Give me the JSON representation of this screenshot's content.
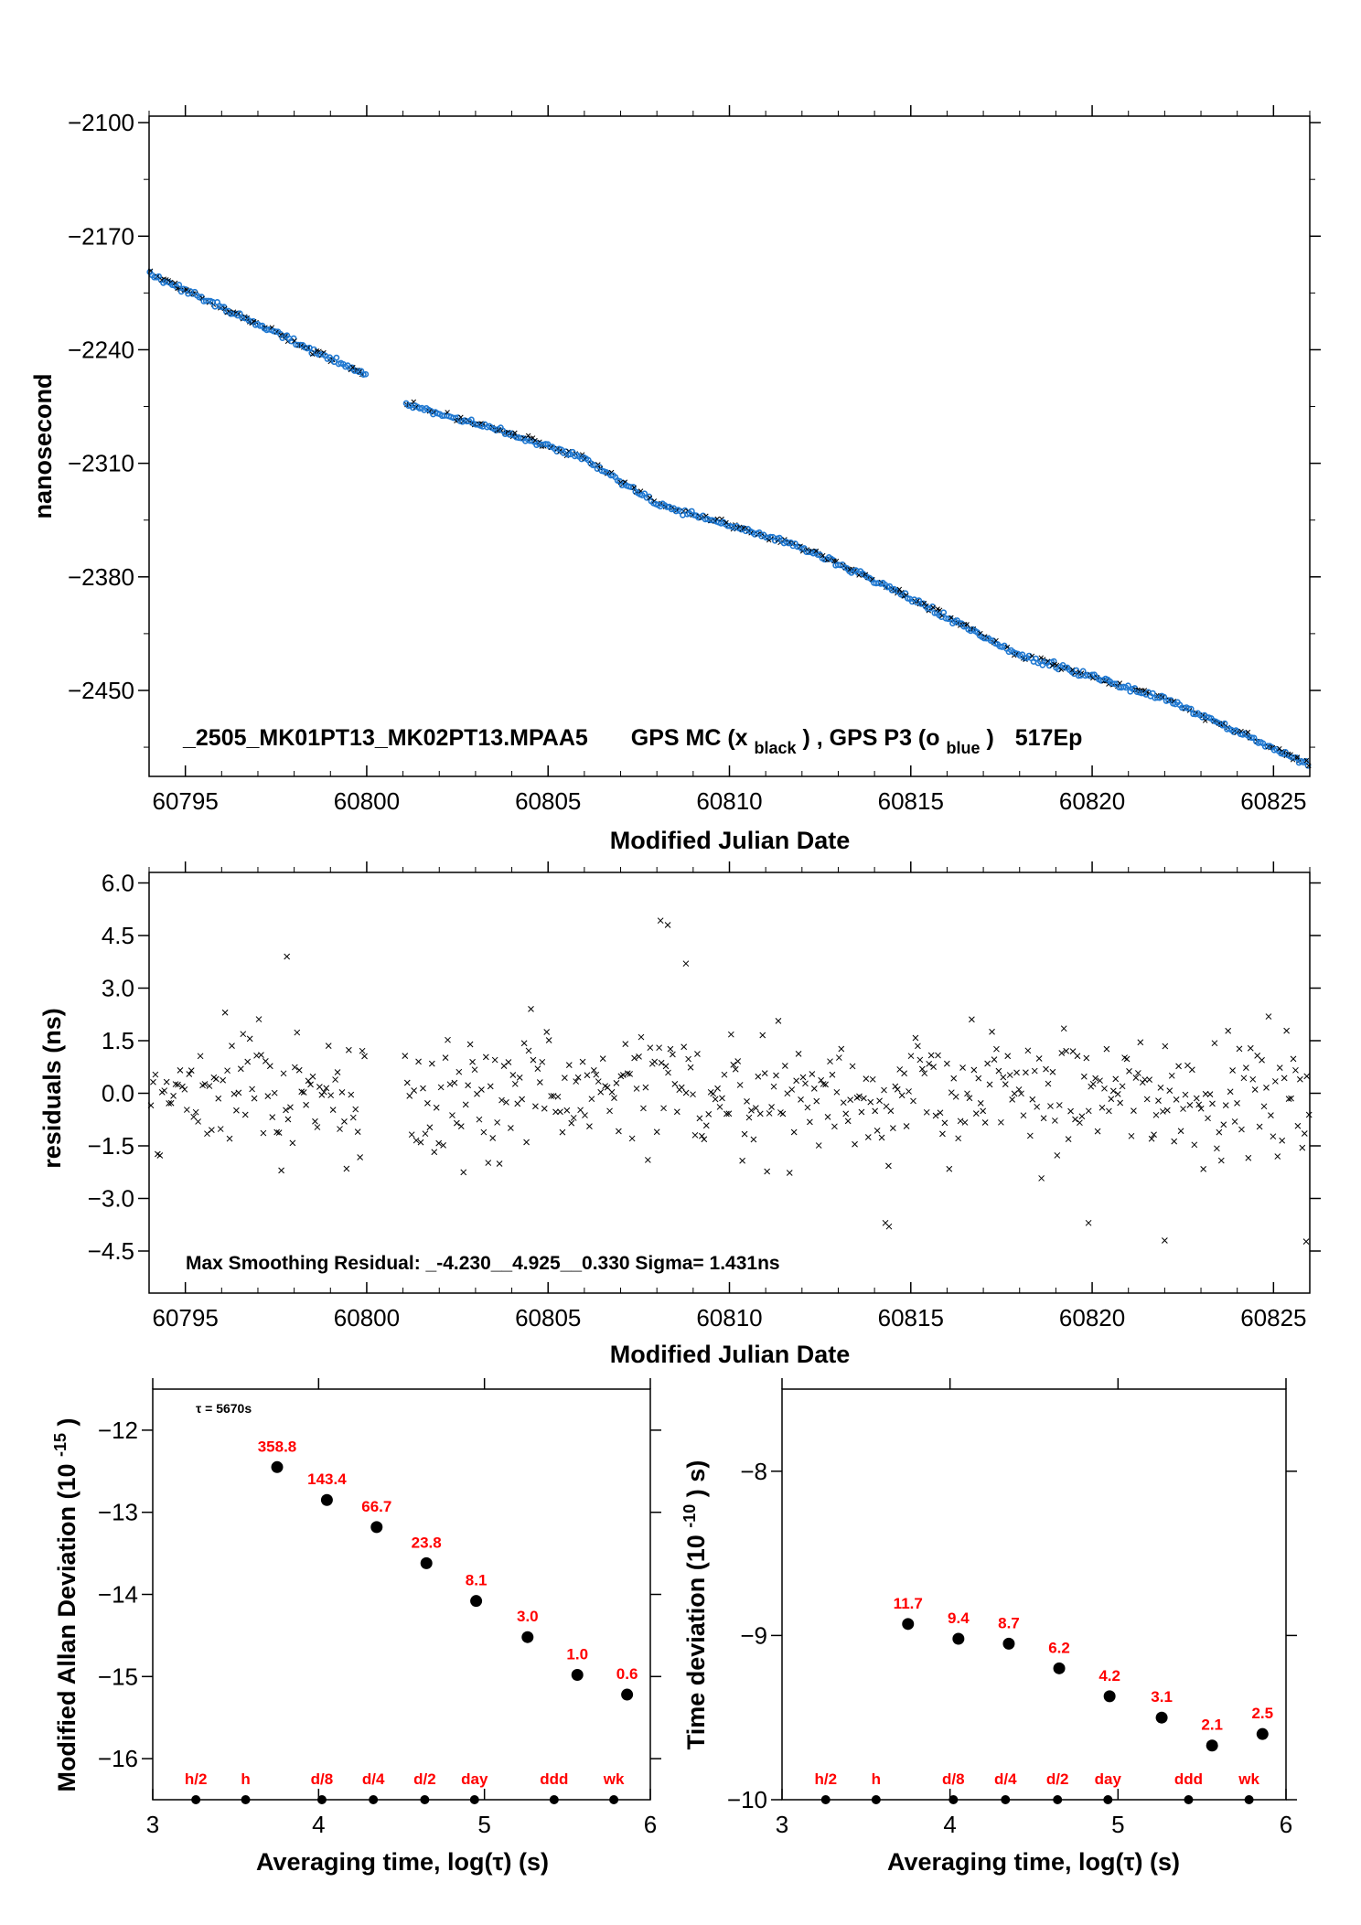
{
  "chart_data": [
    {
      "type": "scatter",
      "id": "phase",
      "xlabel": "Modified Julian Date",
      "ylabel": "nanosecond",
      "xlim": [
        60794,
        60826
      ],
      "ylim": [
        -2503,
        -2096
      ],
      "xticks": [
        60795,
        60800,
        60805,
        60810,
        60815,
        60820,
        60825
      ],
      "yticks": [
        -2100,
        -2170,
        -2240,
        -2310,
        -2380,
        -2450
      ],
      "ytick_labels": [
        "−2100",
        "−2170",
        "−2240",
        "−2310",
        "−2380",
        "−2450"
      ],
      "title_parts": {
        "run_id": "_2505_MK01PT13_MK02PT13.MPAA5",
        "gps_mc": "GPS MC (x",
        "black": "black",
        "sep": ") ,  GPS P3 (o",
        "blue": "blue",
        "close": ")",
        "epochs": "517Ep"
      },
      "series": [
        {
          "name": "GPS MC",
          "marker": "x",
          "color": "#000000"
        },
        {
          "name": "GPS P3",
          "marker": "o",
          "color": "#1f78d1"
        }
      ],
      "segments": [
        {
          "x": [
            60794.0,
            60800.0
          ],
          "y": [
            -2193,
            -2256
          ]
        },
        {
          "x": [
            60801.05,
            60826.0
          ],
          "y": [
            -2273,
            -2496
          ]
        }
      ],
      "trend_nodes": {
        "x": [
          60801.05,
          60804.0,
          60806.0,
          60808.0,
          60812.0,
          60814.0,
          60818.0,
          60822.0,
          60826.0
        ],
        "y": [
          -2273,
          -2292,
          -2307,
          -2335,
          -2362,
          -2382,
          -2428,
          -2455,
          -2496
        ]
      },
      "grid": false
    },
    {
      "type": "scatter",
      "id": "residuals",
      "xlabel": "Modified Julian Date",
      "ylabel": "residuals (ns)",
      "xlim": [
        60794,
        60826
      ],
      "ylim": [
        -5.7,
        6.3
      ],
      "xticks": [
        60795,
        60800,
        60805,
        60810,
        60815,
        60820,
        60825
      ],
      "yticks": [
        6.0,
        4.5,
        3.0,
        1.5,
        0.0,
        -1.5,
        -3.0,
        -4.5
      ],
      "ytick_labels": [
        "6.0",
        "4.5",
        "3.0",
        "1.5",
        "0.0",
        "−1.5",
        "−3.0",
        "−4.5"
      ],
      "annotation": "Max Smoothing Residual: _-4.230__4.925__0.330  Sigma= 1.431ns",
      "marker": "x",
      "color": "#000000",
      "sigma": 1.431,
      "outliers": [
        {
          "x": 60808.1,
          "y": 4.925
        },
        {
          "x": 60808.3,
          "y": 4.8
        },
        {
          "x": 60808.8,
          "y": 3.7
        },
        {
          "x": 60797.8,
          "y": 3.9
        },
        {
          "x": 60825.9,
          "y": -4.23
        },
        {
          "x": 60814.3,
          "y": -3.7
        },
        {
          "x": 60814.4,
          "y": -3.8
        },
        {
          "x": 60819.9,
          "y": -3.7
        },
        {
          "x": 60822.0,
          "y": -4.2
        }
      ],
      "grid": false
    },
    {
      "type": "scatter",
      "id": "mdev",
      "xlabel": "Averaging time, log(τ) (s)",
      "ylabel_main": "Modified Allan Deviation (10",
      "ylabel_sup": "-15",
      "ylabel_close": ")",
      "annotation": "τ = 5670s",
      "xlim": [
        3,
        6
      ],
      "ylim": [
        -16.5,
        -11.5
      ],
      "xticks": [
        3,
        4,
        5,
        6
      ],
      "yticks": [
        -12,
        -13,
        -14,
        -15,
        -16
      ],
      "ytick_labels": [
        "−12",
        "−13",
        "−14",
        "−15",
        "−16"
      ],
      "x": [
        3.75,
        4.05,
        4.35,
        4.65,
        4.95,
        5.26,
        5.56,
        5.86
      ],
      "y": [
        -12.45,
        -12.85,
        -13.18,
        -13.62,
        -14.08,
        -14.52,
        -14.98,
        -15.22
      ],
      "point_labels": [
        "358.8",
        "143.4",
        "66.7",
        "23.8",
        "8.1",
        "3.0",
        "1.0",
        "0.6"
      ],
      "markers_x": [
        3.26,
        3.56,
        4.02,
        4.33,
        4.64,
        4.94,
        5.42,
        5.78
      ],
      "markers_labels": [
        "h/2",
        "h",
        "d/8",
        "d/4",
        "d/2",
        "day",
        "ddd",
        "wk"
      ],
      "grid": false
    },
    {
      "type": "scatter",
      "id": "tdev",
      "xlabel": "Averaging time, log(τ) (s)",
      "ylabel_main": "Time deviation (10",
      "ylabel_sup": "-10",
      "ylabel_close": ") s)",
      "xlim": [
        3,
        6
      ],
      "ylim": [
        -10,
        -7.5
      ],
      "xticks": [
        3,
        4,
        5,
        6
      ],
      "yticks": [
        -8,
        -9,
        -10
      ],
      "ytick_labels": [
        "−8",
        "−9",
        "−10"
      ],
      "x": [
        3.75,
        4.05,
        4.35,
        4.65,
        4.95,
        5.26,
        5.56,
        5.86
      ],
      "y": [
        -8.93,
        -9.02,
        -9.05,
        -9.2,
        -9.37,
        -9.5,
        -9.67,
        -9.6
      ],
      "point_labels": [
        "11.7",
        "9.4",
        "8.7",
        "6.2",
        "4.2",
        "3.1",
        "2.1",
        "2.5"
      ],
      "markers_x": [
        3.26,
        3.56,
        4.02,
        4.33,
        4.64,
        4.94,
        5.42,
        5.78
      ],
      "markers_labels": [
        "h/2",
        "h",
        "d/8",
        "d/4",
        "d/2",
        "day",
        "ddd",
        "wk"
      ],
      "grid": false
    }
  ]
}
